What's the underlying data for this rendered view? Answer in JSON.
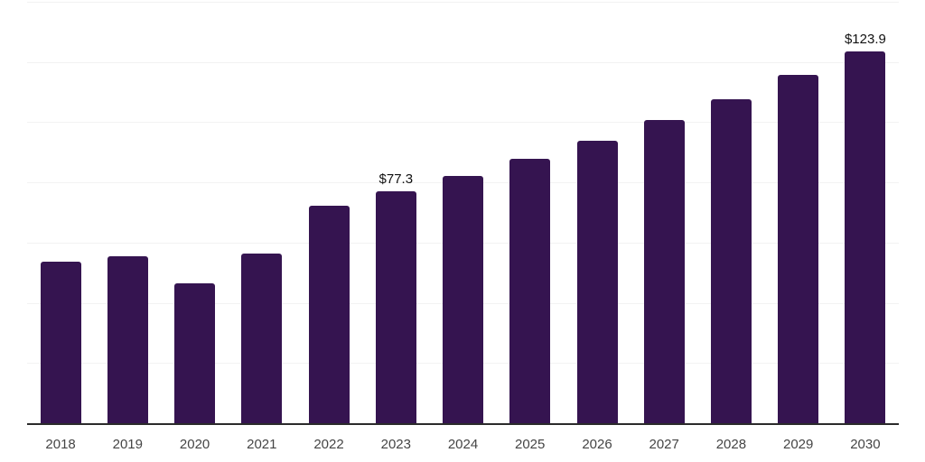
{
  "chart_data": {
    "type": "bar",
    "title": "",
    "xlabel": "",
    "ylabel": "",
    "categories": [
      "2018",
      "2019",
      "2020",
      "2021",
      "2022",
      "2023",
      "2024",
      "2025",
      "2026",
      "2027",
      "2028",
      "2029",
      "2030"
    ],
    "values": [
      54.1,
      55.9,
      46.9,
      56.8,
      72.7,
      77.3,
      82.4,
      88.1,
      94.1,
      100.9,
      107.8,
      115.9,
      123.9
    ],
    "ylim": [
      0,
      140
    ],
    "yticks": [
      0,
      20,
      40,
      60,
      80,
      100,
      120,
      140
    ],
    "grid": true,
    "legend": false,
    "annotations": [
      {
        "category": "2023",
        "text": "$77.3"
      },
      {
        "category": "2030",
        "text": "$123.9"
      }
    ],
    "colors": {
      "bar": "#351450",
      "axis": "#2b2b2b",
      "gridline": "#f2f2f2",
      "tick_label": "#454545",
      "value_label": "#111111",
      "background": "#ffffff"
    }
  }
}
